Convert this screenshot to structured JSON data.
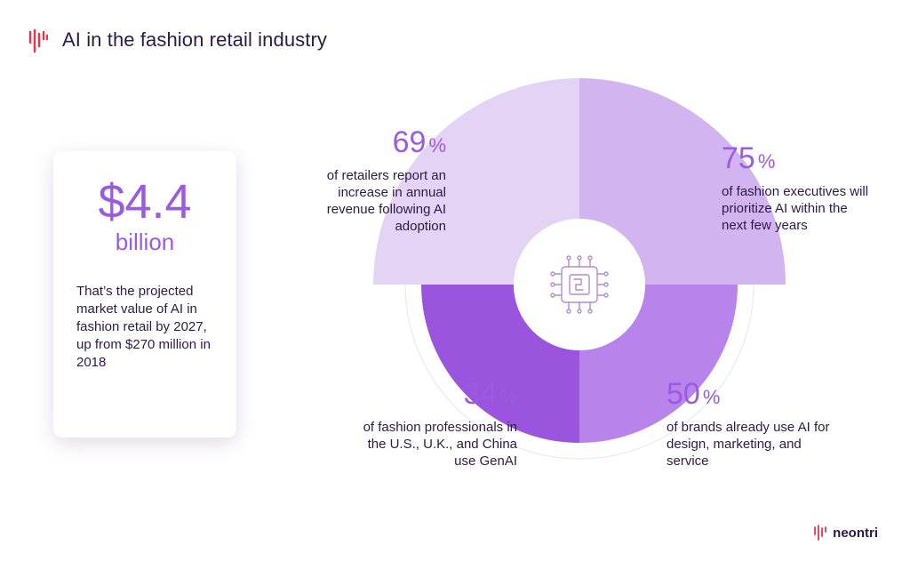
{
  "header": {
    "title": "AI in the fashion retail industry"
  },
  "card": {
    "value": "$4.4",
    "unit": "billion",
    "description": "That’s the projected market value of AI in fashion retail by 2027, up from $270 million in 2018"
  },
  "colors": {
    "slice_69": "#e3d3f5",
    "slice_75": "#d2b4f0",
    "slice_50": "#b884eb",
    "slice_34": "#9b54de",
    "accent": "#9b5be0",
    "brand_red": "#e8334a",
    "text": "#2e1a47"
  },
  "center_icon": "ai-chip-icon",
  "chart_data": {
    "type": "pie",
    "slices": [
      {
        "value": 69,
        "pct_label": "69",
        "text": "of retailers report an increase in annual revenue following AI adoption"
      },
      {
        "value": 75,
        "pct_label": "75",
        "text": "of fashion executives will prioritize AI within the next few years"
      },
      {
        "value": 50,
        "pct_label": "50",
        "text": "of brands already use AI for design, marketing, and service"
      },
      {
        "value": 34,
        "pct_label": "34",
        "text": "of fashion professionals in the U.S., U.K., and China use GenAI"
      }
    ],
    "percent_sign": "%"
  },
  "brand": {
    "name": "neontri"
  }
}
